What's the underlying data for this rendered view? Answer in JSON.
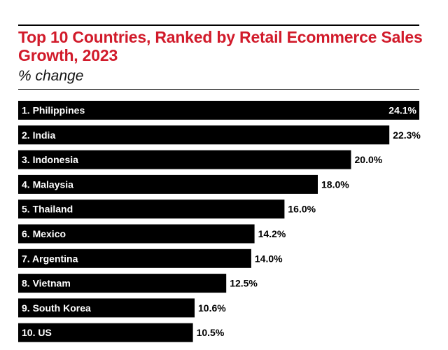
{
  "chart": {
    "title": "Top 10 Countries, Ranked by Retail Ecommerce Sales Growth, 2023",
    "subtitle": "% change"
  },
  "chart_data": {
    "type": "bar",
    "orientation": "horizontal",
    "title": "Top 10 Countries, Ranked by Retail Ecommerce Sales Growth, 2023",
    "subtitle": "% change",
    "xlabel": "",
    "ylabel": "",
    "grid": false,
    "legend": "none",
    "bar_color": "#000000",
    "title_color": "#d11a2a",
    "categories": [
      "1. Philippines",
      "2. India",
      "3. Indonesia",
      "4. Malaysia",
      "5. Thailand",
      "6. Mexico",
      "7. Argentina",
      "8. Vietnam",
      "9. South Korea",
      "10. US"
    ],
    "values": [
      24.1,
      22.3,
      20.0,
      18.0,
      16.0,
      14.2,
      14.0,
      12.5,
      10.6,
      10.5
    ],
    "value_labels": [
      "24.1%",
      "22.3%",
      "20.0%",
      "18.0%",
      "16.0%",
      "14.2%",
      "14.0%",
      "12.5%",
      "10.6%",
      "10.5%"
    ]
  }
}
